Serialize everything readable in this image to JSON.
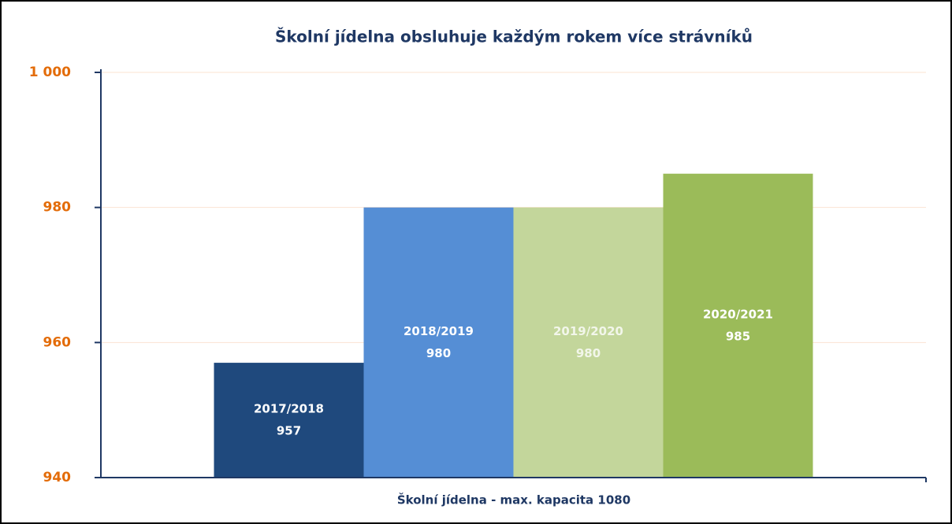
{
  "chart_data": {
    "type": "bar",
    "title": "Školní jídelna obsluhuje každým rokem více strávníků",
    "x_label": "Školní jídelna - max. kapacita 1080",
    "categories": [
      "2017/2018",
      "2018/2019",
      "2019/2020",
      "2020/2021"
    ],
    "values": [
      957,
      980,
      980,
      985
    ],
    "colors": [
      "#1f497d",
      "#558ed5",
      "#c3d69b",
      "#9bbb59"
    ],
    "ylim": [
      940,
      1000
    ],
    "yticks": [
      940,
      960,
      980,
      {
        "value": 1000,
        "label": "1 000"
      }
    ],
    "grid": true
  }
}
